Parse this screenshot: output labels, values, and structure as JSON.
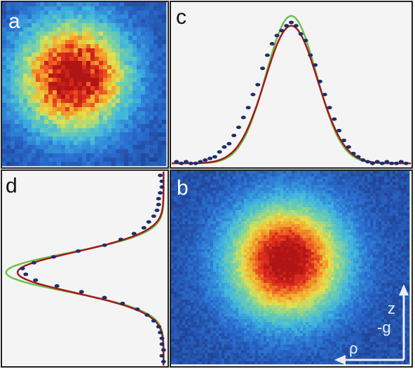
{
  "panel_labels": {
    "a": "a",
    "b": "b",
    "c": "c",
    "d": "d"
  },
  "axis_labels": {
    "z": "z",
    "g": "-g",
    "rho": "ρ"
  },
  "colors": {
    "frame": "#222222",
    "plot_bg": "#f4f4f4",
    "data_points": "#1f2d6b",
    "fit_red": "#a31b1b",
    "fit_green": "#6cc24a",
    "label_light": "#ffffff",
    "label_dark": "#111111",
    "arrow": "#e8eef5"
  },
  "chart_data": [
    {
      "panel": "a",
      "type": "heatmap",
      "description_free": true,
      "colormap": [
        "#1f3a8a",
        "#2a6fd1",
        "#3fb5e0",
        "#79d2a2",
        "#e7e04a",
        "#f39a2a",
        "#e2301e",
        "#b01515"
      ],
      "cloud": {
        "center": [
          0.43,
          0.45
        ],
        "width": 0.16,
        "peak_level": 1.0,
        "noise": 0.35
      }
    },
    {
      "panel": "b",
      "type": "heatmap",
      "colormap": [
        "#1f3a8a",
        "#2a6fd1",
        "#3fb5e0",
        "#79d2a2",
        "#e7e04a",
        "#f39a2a",
        "#e2301e",
        "#b01515"
      ],
      "cloud": {
        "center": [
          0.48,
          0.46
        ],
        "width": 0.14,
        "peak_level": 1.0,
        "noise": 0.12
      }
    },
    {
      "panel": "c",
      "type": "line",
      "x_range": [
        0,
        1
      ],
      "y_range": [
        0,
        1
      ],
      "series": [
        {
          "kind": "gaussian",
          "center": 0.5,
          "sigma": 0.105,
          "amplitude": 0.9,
          "offset": 0.02,
          "role": "fit_green"
        },
        {
          "kind": "gaussian",
          "center": 0.5,
          "sigma": 0.11,
          "amplitude": 0.84,
          "offset": 0.02,
          "flat": 0.04,
          "role": "fit_red"
        }
      ],
      "points": [
        [
          0.02,
          0.03
        ],
        [
          0.04,
          0.02
        ],
        [
          0.06,
          0.03
        ],
        [
          0.08,
          0.02
        ],
        [
          0.1,
          0.02
        ],
        [
          0.12,
          0.03
        ],
        [
          0.14,
          0.04
        ],
        [
          0.16,
          0.05
        ],
        [
          0.18,
          0.06
        ],
        [
          0.2,
          0.09
        ],
        [
          0.22,
          0.12
        ],
        [
          0.24,
          0.14
        ],
        [
          0.26,
          0.19
        ],
        [
          0.28,
          0.24
        ],
        [
          0.3,
          0.3
        ],
        [
          0.32,
          0.36
        ],
        [
          0.34,
          0.44
        ],
        [
          0.36,
          0.5
        ],
        [
          0.38,
          0.6
        ],
        [
          0.4,
          0.68
        ],
        [
          0.42,
          0.75
        ],
        [
          0.44,
          0.8
        ],
        [
          0.46,
          0.83
        ],
        [
          0.48,
          0.86
        ],
        [
          0.5,
          0.88
        ],
        [
          0.52,
          0.86
        ],
        [
          0.54,
          0.81
        ],
        [
          0.56,
          0.77
        ],
        [
          0.58,
          0.68
        ],
        [
          0.6,
          0.62
        ],
        [
          0.62,
          0.52
        ],
        [
          0.64,
          0.44
        ],
        [
          0.66,
          0.36
        ],
        [
          0.68,
          0.29
        ],
        [
          0.7,
          0.22
        ],
        [
          0.72,
          0.16
        ],
        [
          0.74,
          0.12
        ],
        [
          0.76,
          0.08
        ],
        [
          0.78,
          0.06
        ],
        [
          0.8,
          0.04
        ],
        [
          0.82,
          0.03
        ],
        [
          0.84,
          0.02
        ],
        [
          0.86,
          0.03
        ],
        [
          0.88,
          0.02
        ],
        [
          0.9,
          0.03
        ],
        [
          0.92,
          0.02
        ],
        [
          0.94,
          0.02
        ],
        [
          0.96,
          0.03
        ],
        [
          0.98,
          0.02
        ]
      ]
    },
    {
      "panel": "d",
      "type": "line",
      "orientation": "vertical",
      "x_range": [
        0,
        1
      ],
      "y_range": [
        0,
        1
      ],
      "series": [
        {
          "kind": "gaussian",
          "center": 0.52,
          "sigma": 0.1,
          "amplitude": 0.96,
          "offset": 0.02,
          "role": "fit_green"
        },
        {
          "kind": "gaussian",
          "center": 0.52,
          "sigma": 0.105,
          "amplitude": 0.89,
          "offset": 0.02,
          "role": "fit_red"
        }
      ],
      "points": [
        [
          0.02,
          0.04
        ],
        [
          0.05,
          0.03
        ],
        [
          0.08,
          0.03
        ],
        [
          0.11,
          0.04
        ],
        [
          0.14,
          0.05
        ],
        [
          0.17,
          0.05
        ],
        [
          0.2,
          0.06
        ],
        [
          0.23,
          0.08
        ],
        [
          0.26,
          0.11
        ],
        [
          0.29,
          0.14
        ],
        [
          0.32,
          0.2
        ],
        [
          0.35,
          0.28
        ],
        [
          0.38,
          0.38
        ],
        [
          0.41,
          0.54
        ],
        [
          0.44,
          0.69
        ],
        [
          0.47,
          0.81
        ],
        [
          0.5,
          0.88
        ],
        [
          0.53,
          0.86
        ],
        [
          0.56,
          0.8
        ],
        [
          0.59,
          0.67
        ],
        [
          0.62,
          0.52
        ],
        [
          0.65,
          0.38
        ],
        [
          0.68,
          0.27
        ],
        [
          0.71,
          0.18
        ],
        [
          0.74,
          0.12
        ],
        [
          0.77,
          0.08
        ],
        [
          0.8,
          0.05
        ],
        [
          0.83,
          0.04
        ],
        [
          0.86,
          0.03
        ],
        [
          0.89,
          0.03
        ],
        [
          0.92,
          0.02
        ],
        [
          0.95,
          0.03
        ],
        [
          0.98,
          0.02
        ]
      ]
    }
  ]
}
